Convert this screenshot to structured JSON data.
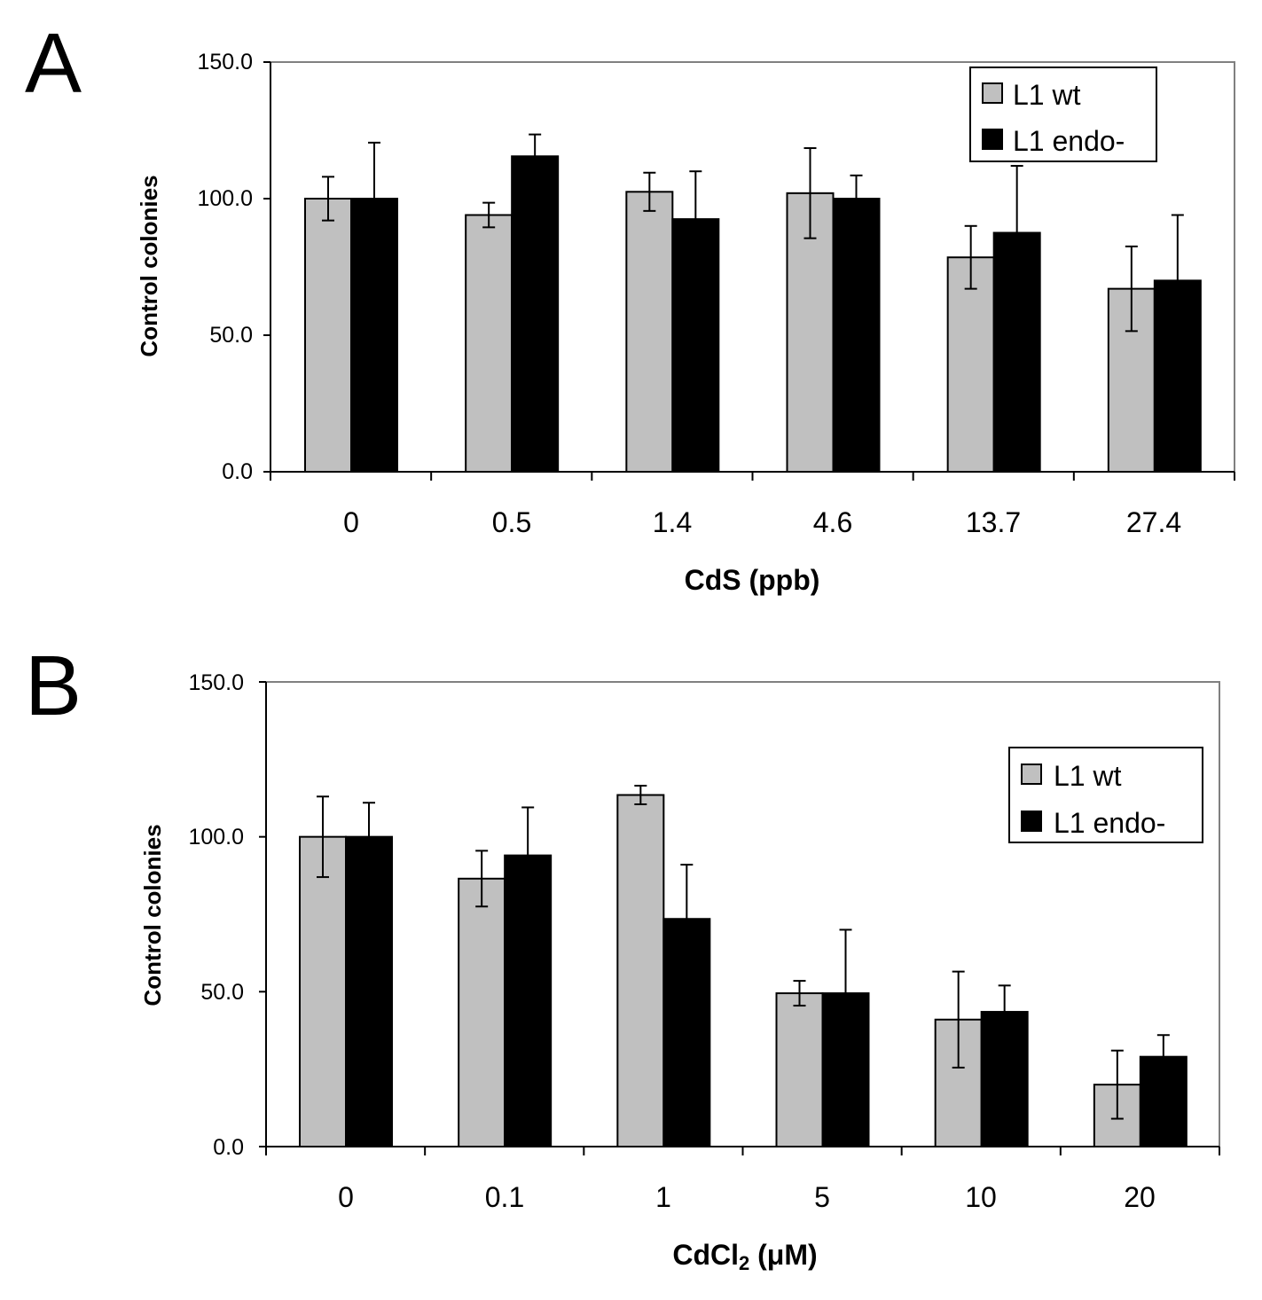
{
  "chart_data": [
    {
      "type": "bar",
      "panel_label": "A",
      "categories": [
        "0",
        "0.5",
        "1.4",
        "4.6",
        "13.7",
        "27.4"
      ],
      "series": [
        {
          "name": "L1 wt",
          "color": "#c0c0c0",
          "values": [
            100.0,
            94.0,
            102.5,
            102.0,
            78.5,
            67.0
          ],
          "errors": [
            8.0,
            4.5,
            7.0,
            16.5,
            11.5,
            15.5
          ]
        },
        {
          "name": "L1 endo-",
          "color": "#000000",
          "values": [
            100.0,
            115.5,
            92.5,
            100.0,
            87.5,
            70.0
          ],
          "errors": [
            20.5,
            8.0,
            17.5,
            8.5,
            24.5,
            24.0
          ]
        }
      ],
      "xlabel": "CdS (ppb)",
      "ylabel": "Control colonies",
      "ylim": [
        0,
        150
      ],
      "yticks": [
        "0.0",
        "50.0",
        "100.0",
        "150.0"
      ],
      "legend_position": "top-right",
      "grid": false
    },
    {
      "type": "bar",
      "panel_label": "B",
      "categories": [
        "0",
        "0.1",
        "1",
        "5",
        "10",
        "20"
      ],
      "series": [
        {
          "name": "L1 wt",
          "color": "#c0c0c0",
          "values": [
            100.0,
            86.5,
            113.5,
            49.5,
            41.0,
            20.0
          ],
          "errors": [
            13.0,
            9.0,
            3.0,
            4.0,
            15.5,
            11.0
          ]
        },
        {
          "name": "L1 endo-",
          "color": "#000000",
          "values": [
            100.0,
            94.0,
            73.5,
            49.5,
            43.5,
            29.0
          ],
          "errors": [
            11.0,
            15.5,
            17.5,
            20.5,
            8.5,
            7.0
          ]
        }
      ],
      "xlabel_main": "CdCl",
      "xlabel_sub": "2",
      "xlabel_unit": " (μM)",
      "ylabel": "Control colonies",
      "ylim": [
        0,
        150
      ],
      "yticks": [
        "0.0",
        "50.0",
        "100.0",
        "150.0"
      ],
      "legend_position": "top-right",
      "grid": false
    }
  ]
}
